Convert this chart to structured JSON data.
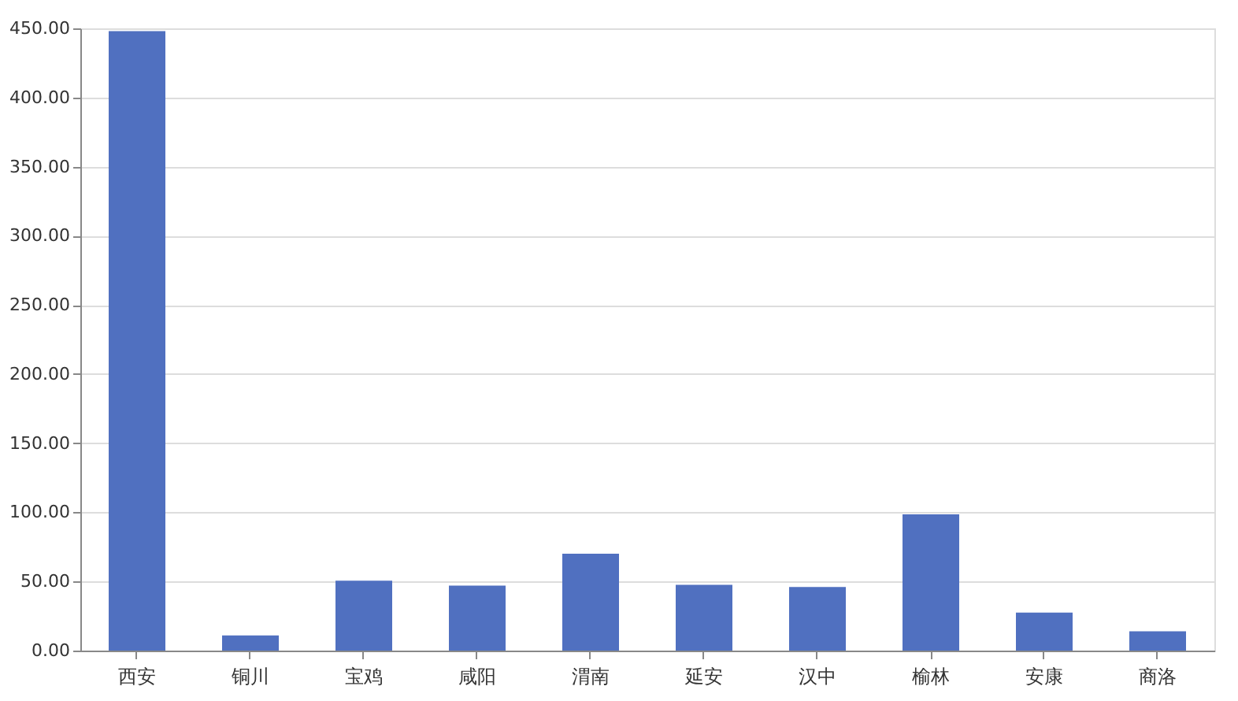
{
  "chart_data": {
    "type": "bar",
    "categories": [
      "西安",
      "铜川",
      "宝鸡",
      "咸阳",
      "渭南",
      "延安",
      "汉中",
      "榆林",
      "安康",
      "商洛"
    ],
    "values": [
      448,
      11,
      50.5,
      47,
      70,
      47.5,
      46,
      98.5,
      27.5,
      14
    ],
    "color": "#5070c0",
    "ylim": [
      0,
      450
    ],
    "yticks": [
      {
        "value": 0,
        "label": "0.00"
      },
      {
        "value": 50,
        "label": "50.00"
      },
      {
        "value": 100,
        "label": "100.00"
      },
      {
        "value": 150,
        "label": "150.00"
      },
      {
        "value": 200,
        "label": "200.00"
      },
      {
        "value": 250,
        "label": "250.00"
      },
      {
        "value": 300,
        "label": "300.00"
      },
      {
        "value": 350,
        "label": "350.00"
      },
      {
        "value": 400,
        "label": "400.00"
      },
      {
        "value": 450,
        "label": "450.00"
      }
    ],
    "grid": "y"
  }
}
